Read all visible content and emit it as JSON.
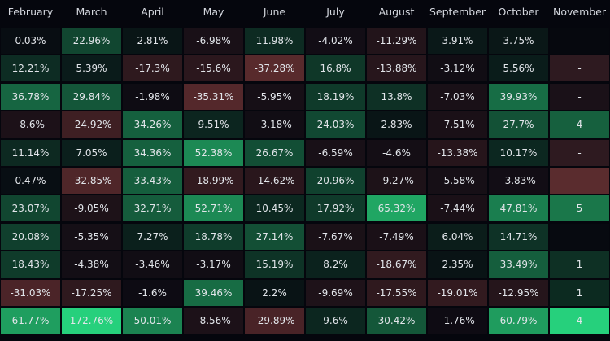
{
  "columns": [
    "February",
    "March",
    "April",
    "May",
    "June",
    "July",
    "August",
    "September",
    "October",
    "November"
  ],
  "rows": [
    [
      "0.03%",
      "22.96%",
      "2.81%",
      "-6.98%",
      "11.98%",
      "-4.02%",
      "-11.29%",
      "3.91%",
      "3.75%",
      ""
    ],
    [
      "12.21%",
      "5.39%",
      "-17.3%",
      "-15.6%",
      "-37.28%",
      "16.8%",
      "-13.88%",
      "-3.12%",
      "5.56%",
      "-"
    ],
    [
      "36.78%",
      "29.84%",
      "-1.98%",
      "-35.31%",
      "-5.95%",
      "18.19%",
      "13.8%",
      "-7.03%",
      "39.93%",
      "-"
    ],
    [
      "-8.6%",
      "-24.92%",
      "34.26%",
      "9.51%",
      "-3.18%",
      "24.03%",
      "2.83%",
      "-7.51%",
      "27.7%",
      "4"
    ],
    [
      "11.14%",
      "7.05%",
      "34.36%",
      "52.38%",
      "26.67%",
      "-6.59%",
      "-4.6%",
      "-13.38%",
      "10.17%",
      "-"
    ],
    [
      "0.47%",
      "-32.85%",
      "33.43%",
      "-18.99%",
      "-14.62%",
      "20.96%",
      "-9.27%",
      "-5.58%",
      "-3.83%",
      "-"
    ],
    [
      "23.07%",
      "-9.05%",
      "32.71%",
      "52.71%",
      "10.45%",
      "17.92%",
      "65.32%",
      "-7.44%",
      "47.81%",
      "5"
    ],
    [
      "20.08%",
      "-5.35%",
      "7.27%",
      "18.78%",
      "27.14%",
      "-7.67%",
      "-7.49%",
      "6.04%",
      "14.71%",
      ""
    ],
    [
      "18.43%",
      "-4.38%",
      "-3.46%",
      "-3.17%",
      "15.19%",
      "8.2%",
      "-18.67%",
      "2.35%",
      "33.49%",
      "1"
    ],
    [
      "-31.03%",
      "-17.25%",
      "-1.6%",
      "39.46%",
      "2.2%",
      "-9.69%",
      "-17.55%",
      "-19.01%",
      "-12.95%",
      "1"
    ],
    [
      "61.77%",
      "172.76%",
      "50.01%",
      "-8.56%",
      "-29.89%",
      "9.6%",
      "30.42%",
      "-1.76%",
      "60.79%",
      "4"
    ]
  ],
  "november_colors": [
    "#06080e",
    "#2e1a20",
    "#1a1118",
    "#16603e",
    "#2e1a20",
    "#5a2c2e",
    "#1a774a",
    "#070a10",
    "#0e3024",
    "#0c2a20",
    "#26d07c"
  ],
  "colors": {
    "background": "#05060d",
    "neutral": "#090b12",
    "positive_max": "#26d07c",
    "negative_max": "#5e2c2e"
  }
}
